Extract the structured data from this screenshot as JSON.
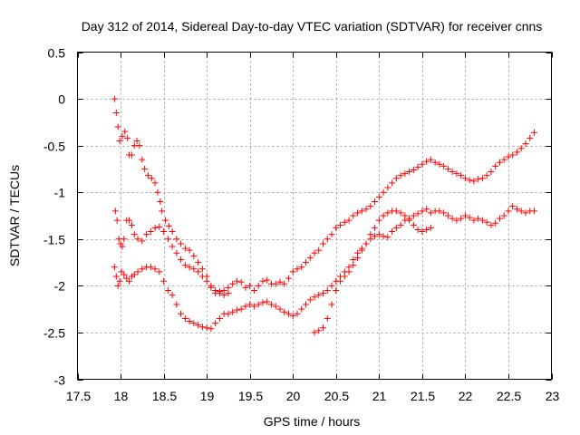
{
  "chart_data": {
    "type": "scatter",
    "title": "Day 312 of 2014, Sidereal Day-to-day VTEC variation (SDTVAR) for receiver cnns",
    "xlabel": "GPS time / hours",
    "ylabel": "SDTVAR / TECUs",
    "xlim": [
      17.5,
      23
    ],
    "ylim": [
      -3,
      0.5
    ],
    "x_ticks": [
      17.5,
      18,
      18.5,
      19,
      19.5,
      20,
      20.5,
      21,
      21.5,
      22,
      22.5,
      23
    ],
    "x_tick_labels": [
      "17.5",
      "18",
      "18.5",
      "19",
      "19.5",
      "20",
      "20.5",
      "21",
      "21.5",
      "22",
      "22.5",
      "23"
    ],
    "y_ticks": [
      0.5,
      0,
      -0.5,
      -1,
      -1.5,
      -2,
      -2.5,
      -3
    ],
    "y_tick_labels": [
      "0.5",
      "0",
      "-0.5",
      "-1",
      "-1.5",
      "-2",
      "-2.5",
      "-3"
    ],
    "grid": true,
    "marker": "+",
    "color": "#ff0000",
    "series": [
      {
        "name": "track-1",
        "points": [
          [
            17.93,
            0.0
          ],
          [
            17.95,
            -0.15
          ],
          [
            17.97,
            -0.3
          ],
          [
            17.99,
            -0.45
          ],
          [
            18.02,
            -0.4
          ],
          [
            18.05,
            -0.35
          ],
          [
            18.08,
            -0.42
          ],
          [
            18.1,
            -0.6
          ],
          [
            18.13,
            -0.6
          ],
          [
            18.16,
            -0.5
          ],
          [
            18.19,
            -0.45
          ],
          [
            18.22,
            -0.5
          ],
          [
            18.25,
            -0.65
          ],
          [
            18.28,
            -0.75
          ],
          [
            18.32,
            -0.82
          ],
          [
            18.36,
            -0.85
          ],
          [
            18.4,
            -0.9
          ],
          [
            18.43,
            -1.0
          ],
          [
            18.46,
            -1.1
          ],
          [
            18.48,
            -1.2
          ],
          [
            18.52,
            -1.3
          ],
          [
            18.56,
            -1.36
          ],
          [
            18.6,
            -1.42
          ],
          [
            18.65,
            -1.5
          ],
          [
            18.7,
            -1.55
          ],
          [
            18.75,
            -1.6
          ],
          [
            18.8,
            -1.62
          ],
          [
            18.85,
            -1.68
          ],
          [
            18.9,
            -1.75
          ],
          [
            18.95,
            -1.82
          ],
          [
            19.0,
            -1.9
          ],
          [
            19.05,
            -2.0
          ],
          [
            19.1,
            -2.08
          ],
          [
            19.15,
            -2.06
          ],
          [
            19.2,
            -2.05
          ],
          [
            19.25,
            -2.02
          ],
          [
            19.3,
            -1.98
          ],
          [
            19.35,
            -1.95
          ],
          [
            19.4,
            -1.96
          ],
          [
            19.45,
            -2.02
          ],
          [
            19.5,
            -2.0
          ],
          [
            19.55,
            -2.05
          ],
          [
            19.6,
            -2.0
          ],
          [
            19.65,
            -1.95
          ],
          [
            19.7,
            -1.94
          ],
          [
            19.75,
            -1.98
          ],
          [
            19.8,
            -1.98
          ],
          [
            19.85,
            -1.96
          ],
          [
            19.9,
            -1.98
          ],
          [
            19.95,
            -1.92
          ],
          [
            20.0,
            -1.85
          ],
          [
            20.05,
            -1.82
          ],
          [
            20.1,
            -1.8
          ],
          [
            20.15,
            -1.75
          ],
          [
            20.2,
            -1.7
          ],
          [
            20.25,
            -1.65
          ],
          [
            20.3,
            -1.62
          ],
          [
            20.35,
            -1.55
          ],
          [
            20.4,
            -1.5
          ],
          [
            20.45,
            -1.45
          ],
          [
            20.5,
            -1.38
          ],
          [
            20.55,
            -1.35
          ],
          [
            20.6,
            -1.32
          ],
          [
            20.65,
            -1.3
          ],
          [
            20.7,
            -1.25
          ],
          [
            20.75,
            -1.22
          ],
          [
            20.8,
            -1.2
          ],
          [
            20.85,
            -1.18
          ],
          [
            20.9,
            -1.15
          ],
          [
            20.95,
            -1.1
          ],
          [
            21.0,
            -1.05
          ],
          [
            21.05,
            -1.0
          ],
          [
            21.1,
            -0.95
          ],
          [
            21.15,
            -0.9
          ],
          [
            21.2,
            -0.85
          ],
          [
            21.25,
            -0.82
          ],
          [
            21.3,
            -0.8
          ],
          [
            21.35,
            -0.78
          ],
          [
            21.4,
            -0.76
          ],
          [
            21.45,
            -0.73
          ],
          [
            21.5,
            -0.7
          ],
          [
            21.55,
            -0.67
          ],
          [
            21.6,
            -0.65
          ],
          [
            21.65,
            -0.68
          ],
          [
            21.7,
            -0.7
          ],
          [
            21.75,
            -0.72
          ],
          [
            21.8,
            -0.75
          ],
          [
            21.85,
            -0.78
          ],
          [
            21.9,
            -0.8
          ],
          [
            21.95,
            -0.82
          ],
          [
            22.0,
            -0.85
          ],
          [
            22.05,
            -0.87
          ],
          [
            22.1,
            -0.88
          ],
          [
            22.15,
            -0.86
          ],
          [
            22.2,
            -0.85
          ],
          [
            22.25,
            -0.82
          ],
          [
            22.3,
            -0.78
          ],
          [
            22.35,
            -0.72
          ],
          [
            22.4,
            -0.68
          ],
          [
            22.45,
            -0.65
          ],
          [
            22.5,
            -0.62
          ],
          [
            22.55,
            -0.6
          ],
          [
            22.6,
            -0.57
          ],
          [
            22.65,
            -0.53
          ],
          [
            22.7,
            -0.48
          ],
          [
            22.75,
            -0.42
          ],
          [
            22.8,
            -0.36
          ]
        ]
      },
      {
        "name": "track-2",
        "points": [
          [
            17.94,
            -1.2
          ],
          [
            17.96,
            -1.3
          ],
          [
            17.98,
            -1.5
          ],
          [
            18.0,
            -1.55
          ],
          [
            18.02,
            -1.58
          ],
          [
            18.04,
            -1.5
          ],
          [
            18.07,
            -1.3
          ],
          [
            18.1,
            -1.3
          ],
          [
            18.13,
            -1.35
          ],
          [
            18.16,
            -1.45
          ],
          [
            18.2,
            -1.5
          ],
          [
            18.25,
            -1.52
          ],
          [
            18.3,
            -1.45
          ],
          [
            18.35,
            -1.42
          ],
          [
            18.4,
            -1.38
          ],
          [
            18.45,
            -1.37
          ],
          [
            18.5,
            -1.42
          ],
          [
            18.55,
            -1.5
          ],
          [
            18.6,
            -1.58
          ],
          [
            18.65,
            -1.65
          ],
          [
            18.7,
            -1.72
          ],
          [
            18.75,
            -1.78
          ],
          [
            18.8,
            -1.8
          ],
          [
            18.85,
            -1.82
          ],
          [
            18.9,
            -1.85
          ],
          [
            18.95,
            -1.9
          ],
          [
            19.0,
            -1.95
          ],
          [
            19.05,
            -2.02
          ],
          [
            19.1,
            -2.05
          ],
          [
            19.15,
            -2.08
          ],
          [
            19.2,
            -2.1
          ],
          [
            19.25,
            -2.08
          ]
        ]
      },
      {
        "name": "track-3",
        "points": [
          [
            17.93,
            -1.8
          ],
          [
            17.95,
            -1.9
          ],
          [
            17.97,
            -2.0
          ],
          [
            17.99,
            -1.95
          ],
          [
            18.01,
            -1.85
          ],
          [
            18.04,
            -1.88
          ],
          [
            18.07,
            -1.92
          ],
          [
            18.1,
            -1.95
          ],
          [
            18.13,
            -1.9
          ],
          [
            18.16,
            -1.88
          ],
          [
            18.2,
            -1.85
          ],
          [
            18.25,
            -1.82
          ],
          [
            18.3,
            -1.8
          ],
          [
            18.35,
            -1.8
          ],
          [
            18.4,
            -1.82
          ],
          [
            18.45,
            -1.85
          ],
          [
            18.5,
            -1.95
          ],
          [
            18.55,
            -2.05
          ],
          [
            18.6,
            -2.1
          ],
          [
            18.65,
            -2.2
          ],
          [
            18.7,
            -2.3
          ],
          [
            18.75,
            -2.35
          ],
          [
            18.8,
            -2.38
          ],
          [
            18.85,
            -2.4
          ],
          [
            18.9,
            -2.42
          ],
          [
            18.95,
            -2.44
          ],
          [
            19.0,
            -2.45
          ],
          [
            19.05,
            -2.46
          ],
          [
            19.1,
            -2.4
          ],
          [
            19.15,
            -2.35
          ],
          [
            19.2,
            -2.3
          ],
          [
            19.25,
            -2.3
          ],
          [
            19.3,
            -2.28
          ],
          [
            19.35,
            -2.26
          ],
          [
            19.4,
            -2.25
          ],
          [
            19.45,
            -2.22
          ],
          [
            19.5,
            -2.2
          ],
          [
            19.55,
            -2.22
          ],
          [
            19.6,
            -2.2
          ],
          [
            19.65,
            -2.18
          ],
          [
            19.7,
            -2.17
          ],
          [
            19.75,
            -2.2
          ],
          [
            19.8,
            -2.22
          ],
          [
            19.85,
            -2.25
          ],
          [
            19.9,
            -2.28
          ],
          [
            19.95,
            -2.3
          ],
          [
            20.0,
            -2.32
          ],
          [
            20.05,
            -2.3
          ],
          [
            20.1,
            -2.25
          ],
          [
            20.15,
            -2.2
          ],
          [
            20.2,
            -2.15
          ],
          [
            20.25,
            -2.12
          ],
          [
            20.3,
            -2.1
          ],
          [
            20.35,
            -2.08
          ],
          [
            20.4,
            -2.05
          ],
          [
            20.45,
            -2.0
          ],
          [
            20.5,
            -1.95
          ],
          [
            20.55,
            -1.9
          ],
          [
            20.6,
            -1.85
          ],
          [
            20.65,
            -1.8
          ],
          [
            20.7,
            -1.72
          ],
          [
            20.75,
            -1.65
          ],
          [
            20.8,
            -1.6
          ],
          [
            20.85,
            -1.55
          ],
          [
            20.9,
            -1.5
          ],
          [
            20.95,
            -1.47
          ],
          [
            21.0,
            -1.45
          ],
          [
            21.05,
            -1.47
          ],
          [
            21.1,
            -1.48
          ],
          [
            21.15,
            -1.42
          ],
          [
            21.2,
            -1.38
          ],
          [
            21.25,
            -1.35
          ],
          [
            21.3,
            -1.3
          ],
          [
            21.35,
            -1.28
          ],
          [
            21.4,
            -1.25
          ],
          [
            21.45,
            -1.23
          ],
          [
            21.5,
            -1.2
          ],
          [
            21.55,
            -1.18
          ],
          [
            21.6,
            -1.22
          ],
          [
            21.65,
            -1.2
          ],
          [
            21.7,
            -1.2
          ],
          [
            21.75,
            -1.22
          ],
          [
            21.8,
            -1.25
          ],
          [
            21.85,
            -1.28
          ],
          [
            21.9,
            -1.3
          ],
          [
            21.95,
            -1.28
          ],
          [
            22.0,
            -1.25
          ],
          [
            22.05,
            -1.27
          ],
          [
            22.1,
            -1.3
          ],
          [
            22.15,
            -1.28
          ],
          [
            22.2,
            -1.3
          ],
          [
            22.25,
            -1.32
          ],
          [
            22.3,
            -1.35
          ],
          [
            22.35,
            -1.33
          ],
          [
            22.4,
            -1.28
          ],
          [
            22.45,
            -1.25
          ],
          [
            22.5,
            -1.2
          ],
          [
            22.55,
            -1.15
          ],
          [
            22.6,
            -1.18
          ],
          [
            22.65,
            -1.2
          ],
          [
            22.7,
            -1.22
          ],
          [
            22.75,
            -1.2
          ],
          [
            22.8,
            -1.2
          ]
        ]
      },
      {
        "name": "track-4",
        "points": [
          [
            20.25,
            -2.5
          ],
          [
            20.3,
            -2.48
          ],
          [
            20.35,
            -2.45
          ],
          [
            20.4,
            -2.35
          ],
          [
            20.45,
            -2.2
          ],
          [
            20.5,
            -2.05
          ],
          [
            20.55,
            -1.95
          ],
          [
            20.6,
            -1.9
          ],
          [
            20.65,
            -1.85
          ],
          [
            20.7,
            -1.78
          ],
          [
            20.75,
            -1.7
          ],
          [
            20.8,
            -1.62
          ],
          [
            20.85,
            -1.55
          ],
          [
            20.9,
            -1.45
          ],
          [
            20.95,
            -1.38
          ],
          [
            21.0,
            -1.3
          ],
          [
            21.05,
            -1.25
          ],
          [
            21.1,
            -1.22
          ],
          [
            21.15,
            -1.2
          ],
          [
            21.2,
            -1.2
          ],
          [
            21.25,
            -1.22
          ],
          [
            21.3,
            -1.25
          ],
          [
            21.35,
            -1.3
          ],
          [
            21.4,
            -1.35
          ],
          [
            21.45,
            -1.4
          ],
          [
            21.5,
            -1.42
          ],
          [
            21.55,
            -1.4
          ],
          [
            21.6,
            -1.38
          ]
        ]
      }
    ]
  }
}
